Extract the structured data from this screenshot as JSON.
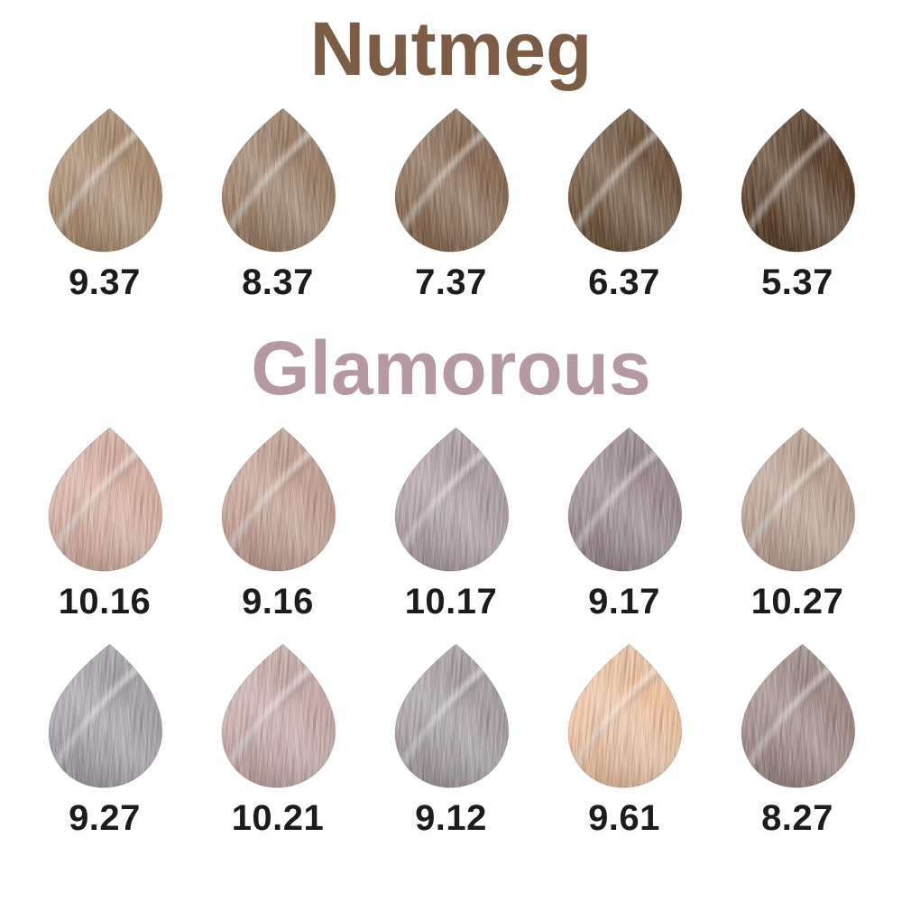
{
  "page": {
    "background": "#ffffff",
    "label_color": "#1c1c1c"
  },
  "sections": [
    {
      "title": "Nutmeg",
      "title_color": "#7d5c46",
      "rows": [
        [
          {
            "code": "9.37",
            "color": "#ac8b6c"
          },
          {
            "code": "8.37",
            "color": "#9c7d64"
          },
          {
            "code": "7.37",
            "color": "#8a6950"
          },
          {
            "code": "6.37",
            "color": "#6f5239"
          },
          {
            "code": "5.37",
            "color": "#593c26"
          }
        ]
      ]
    },
    {
      "title": "Glamorous",
      "title_color": "#b49aa0",
      "rows": [
        [
          {
            "code": "10.16",
            "color": "#dcb2a5"
          },
          {
            "code": "9.16",
            "color": "#c7a295"
          },
          {
            "code": "10.17",
            "color": "#b2a2a8"
          },
          {
            "code": "9.17",
            "color": "#9d8b91"
          },
          {
            "code": "10.27",
            "color": "#bfa494"
          }
        ],
        [
          {
            "code": "9.27",
            "color": "#a9a4ac"
          },
          {
            "code": "10.21",
            "color": "#ccadaa"
          },
          {
            "code": "9.12",
            "color": "#a9a0a5"
          },
          {
            "code": "9.61",
            "color": "#f4c6a3"
          },
          {
            "code": "8.27",
            "color": "#a18b86"
          }
        ]
      ]
    }
  ]
}
